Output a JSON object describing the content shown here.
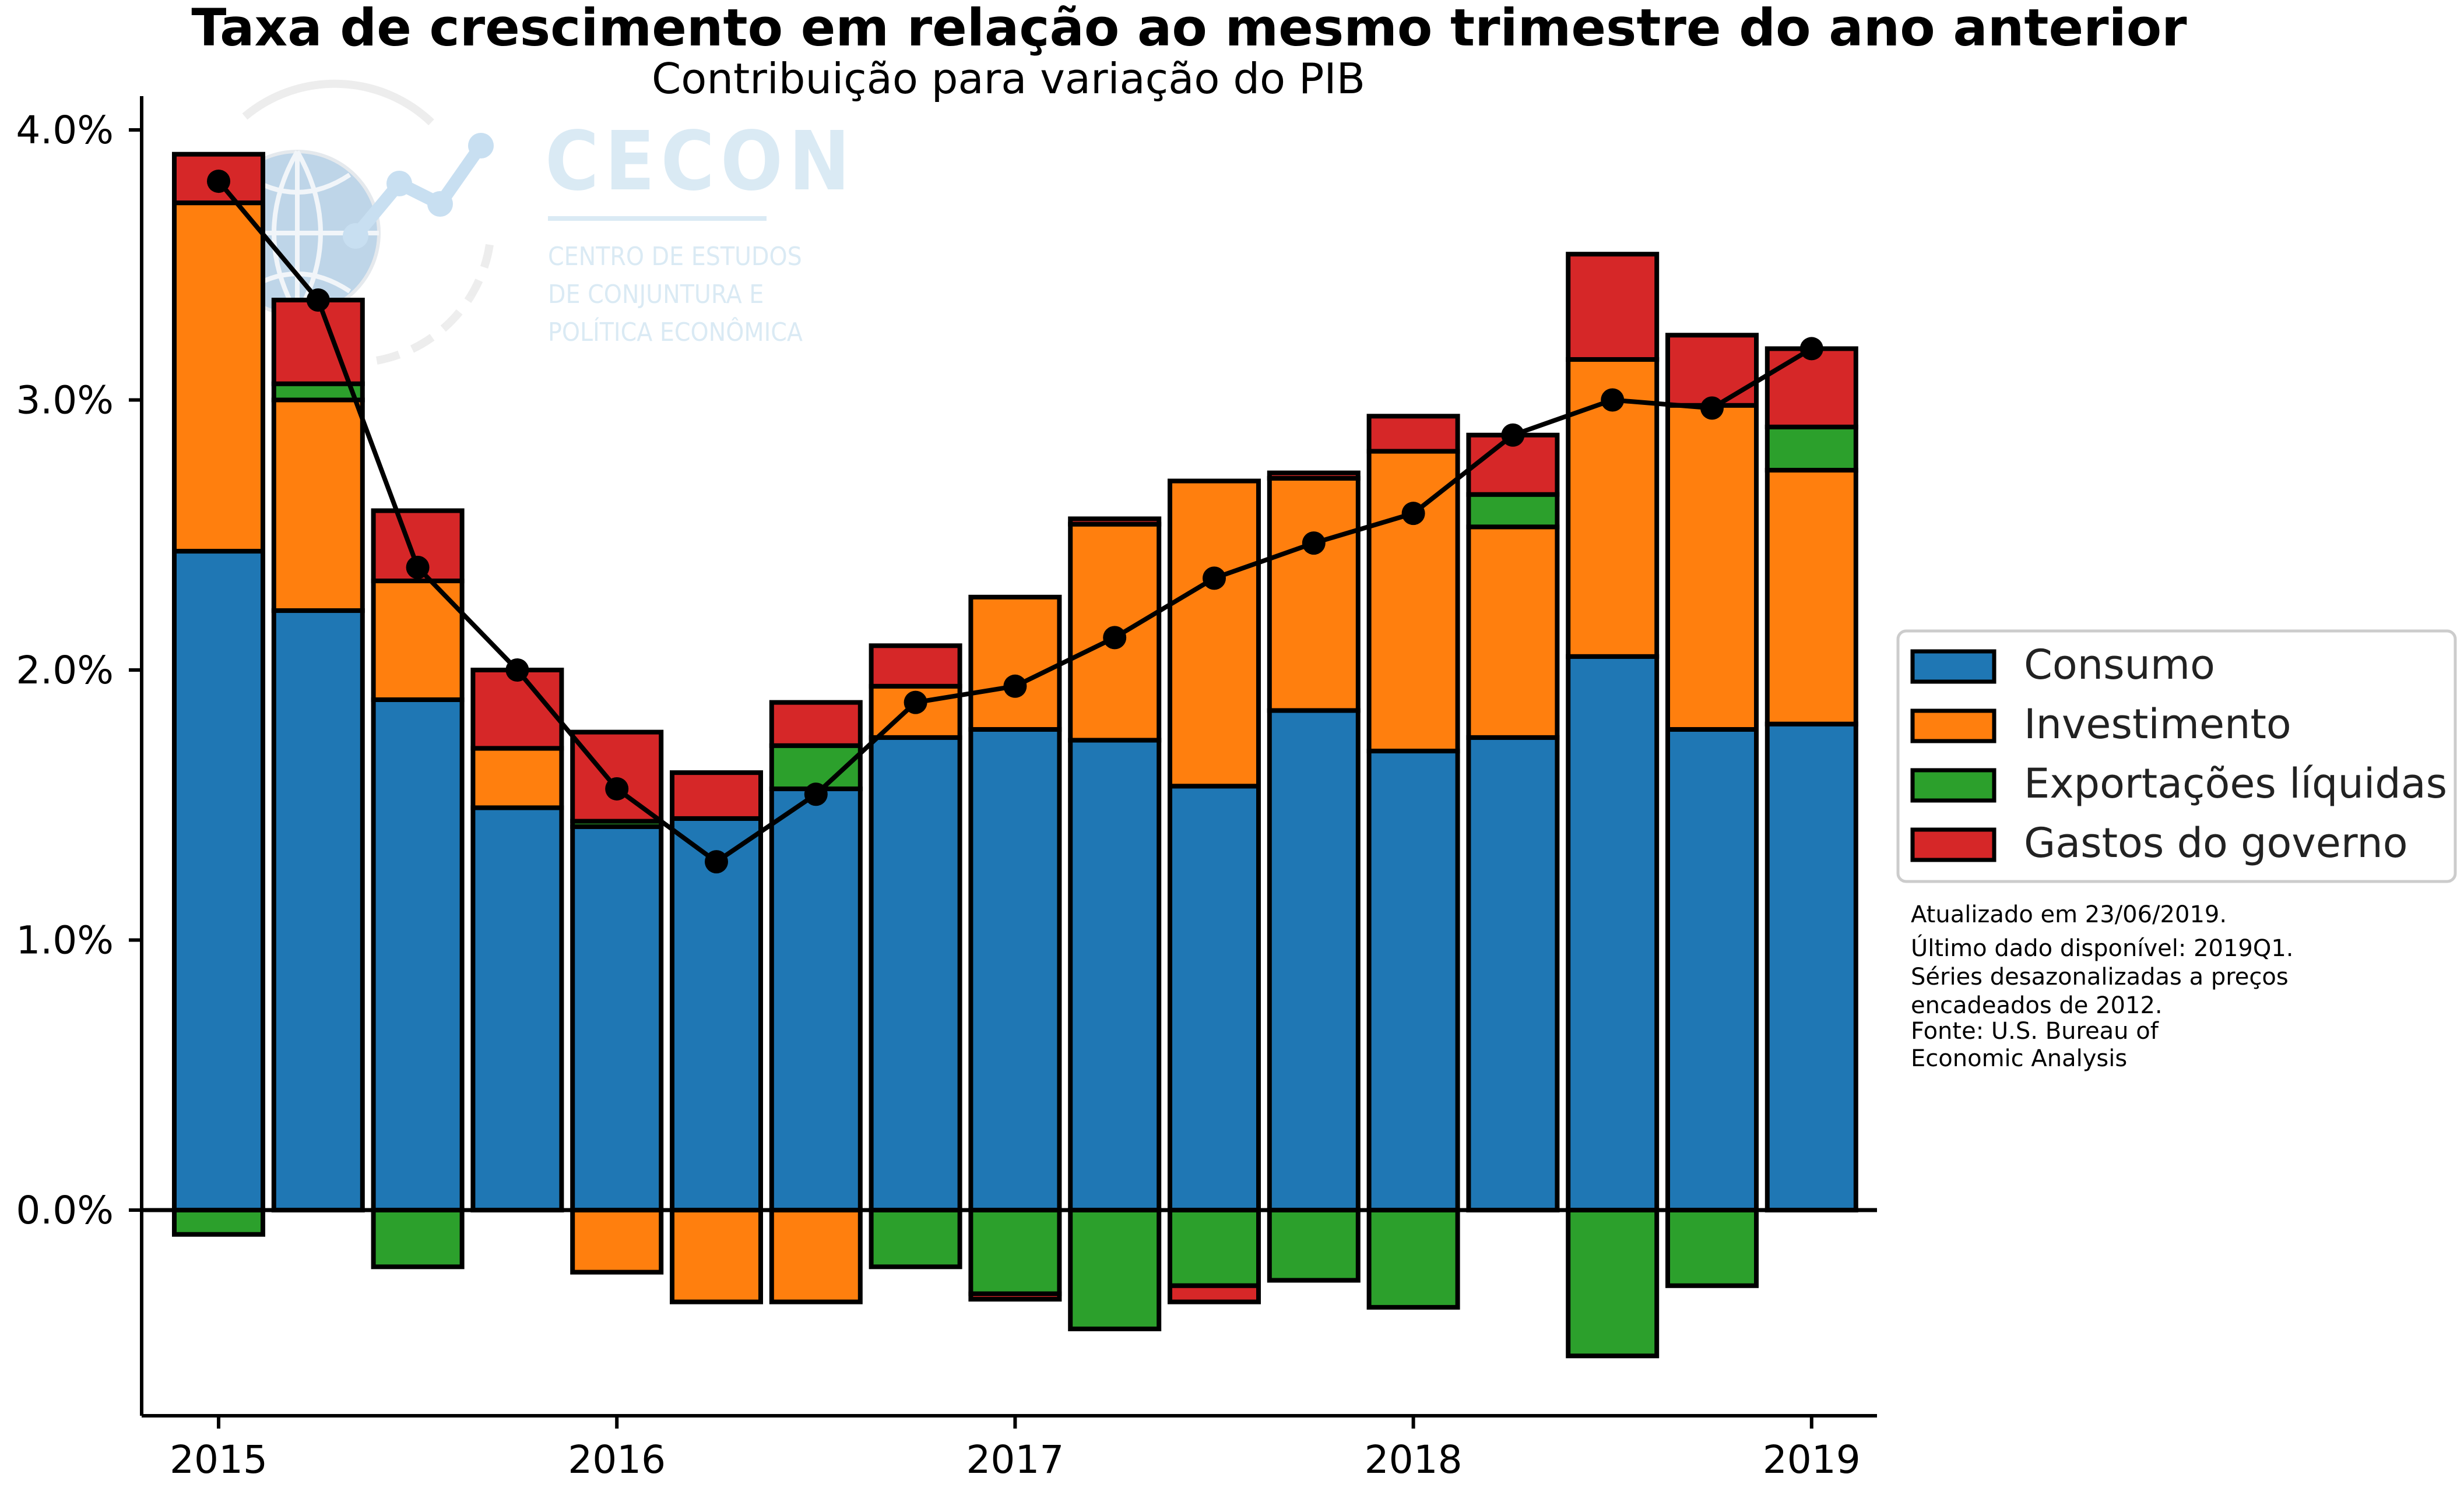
{
  "title": "Taxa de crescimento em relação ao mesmo trimestre do ano anterior",
  "subtitle": "Contribuição para variação do PIB",
  "logo": {
    "name": "CECON",
    "lines": [
      "CENTRO DE ESTUDOS",
      "DE CONJUNTURA E",
      "POLÍTICA ECONÔMICA"
    ]
  },
  "notes": [
    "Atualizado em 23/06/2019.",
    "Último dado disponível: 2019Q1.",
    "Séries desazonalizadas a preços",
    "encadeados de 2012.",
    "Fonte: U.S. Bureau of",
    "Economic Analysis"
  ],
  "chart_data": {
    "type": "bar",
    "stacked": true,
    "title": "Taxa de crescimento em relação ao mesmo trimestre do ano anterior",
    "subtitle": "Contribuição para variação do PIB",
    "categories": [
      "2015Q1",
      "2015Q2",
      "2015Q3",
      "2015Q4",
      "2016Q1",
      "2016Q2",
      "2016Q3",
      "2016Q4",
      "2017Q1",
      "2017Q2",
      "2017Q3",
      "2017Q4",
      "2018Q1",
      "2018Q2",
      "2018Q3",
      "2018Q4",
      "2019Q1"
    ],
    "x_tick_labels": [
      {
        "index": 0,
        "label": "2015"
      },
      {
        "index": 4,
        "label": "2016"
      },
      {
        "index": 8,
        "label": "2017"
      },
      {
        "index": 12,
        "label": "2018"
      },
      {
        "index": 16,
        "label": "2019"
      }
    ],
    "y_ticks": [
      0.0,
      1.0,
      2.0,
      3.0,
      4.0
    ],
    "y_tick_labels": [
      "0.0%",
      "1.0%",
      "2.0%",
      "3.0%",
      "4.0%"
    ],
    "ylim": [
      -0.75,
      4.15
    ],
    "ylabel": "",
    "xlabel": "",
    "grid": false,
    "legend_position": "right",
    "series": [
      {
        "name": "Consumo",
        "color": "#1f77b4",
        "values": [
          2.44,
          2.22,
          1.89,
          1.49,
          1.42,
          1.45,
          1.56,
          1.75,
          1.78,
          1.74,
          1.57,
          1.85,
          1.7,
          1.75,
          2.05,
          1.78,
          1.8
        ]
      },
      {
        "name": "Investimento",
        "color": "#ff7f0e",
        "values": [
          1.29,
          0.78,
          0.44,
          0.22,
          -0.23,
          -0.34,
          -0.34,
          0.19,
          0.49,
          0.8,
          1.13,
          0.86,
          1.11,
          0.78,
          1.1,
          1.2,
          0.94
        ]
      },
      {
        "name": "Exportações líquidas",
        "color": "#2ca02c",
        "values": [
          -0.09,
          0.06,
          -0.21,
          0.0,
          0.02,
          0.0,
          0.16,
          -0.21,
          -0.31,
          -0.44,
          -0.28,
          -0.26,
          -0.36,
          0.12,
          -0.54,
          -0.28,
          0.16
        ]
      },
      {
        "name": "Gastos do governo",
        "color": "#d62728",
        "values": [
          0.18,
          0.31,
          0.26,
          0.29,
          0.33,
          0.17,
          0.16,
          0.15,
          -0.02,
          0.02,
          -0.06,
          0.02,
          0.13,
          0.22,
          0.39,
          0.26,
          0.29
        ]
      }
    ],
    "total": {
      "name": "PIB",
      "color": "#000000",
      "values": [
        3.81,
        3.37,
        2.38,
        2.0,
        1.56,
        1.29,
        1.54,
        1.88,
        1.94,
        2.12,
        2.34,
        2.47,
        2.58,
        2.87,
        3.0,
        2.97,
        3.19
      ]
    }
  }
}
